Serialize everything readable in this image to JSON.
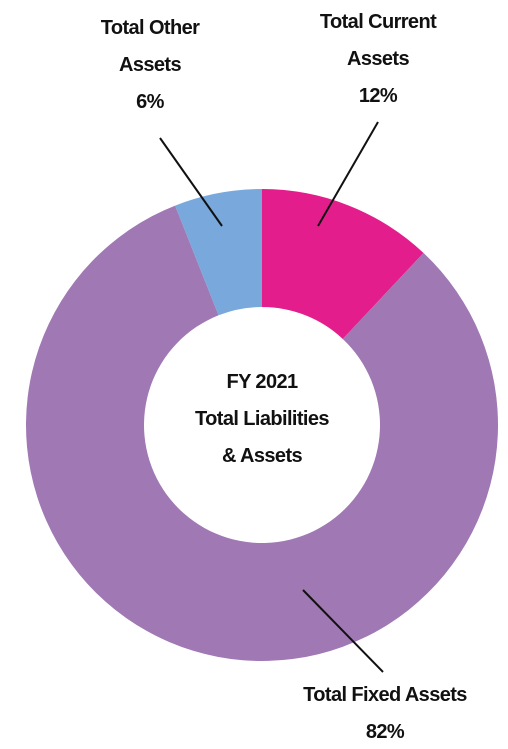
{
  "chart_data": {
    "type": "donut",
    "title": "FY 2021\nTotal Liabilities\n& Assets",
    "categories": [
      "Total Current\nAssets",
      "Total Fixed Assets",
      "Total Other\nAssets"
    ],
    "values": [
      12,
      82,
      6
    ],
    "value_labels": [
      "12%",
      "82%",
      "6%"
    ],
    "colors": [
      "#e31e8c",
      "#a078b4",
      "#78a8dc"
    ]
  }
}
